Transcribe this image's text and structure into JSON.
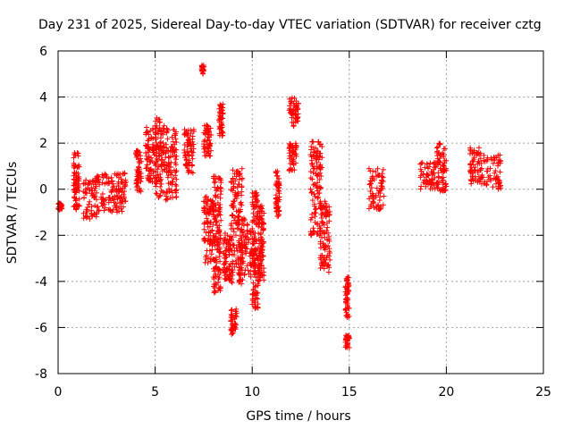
{
  "chart_data": {
    "type": "scatter",
    "title": "Day 231 of 2025, Sidereal Day-to-day VTEC variation (SDTVAR) for receiver cztg",
    "xlabel": "GPS time / hours",
    "ylabel": "SDTVAR / TECUs",
    "xlim": [
      0,
      25
    ],
    "ylim": [
      -8,
      6
    ],
    "xticks": [
      0,
      5,
      10,
      15,
      20,
      25
    ],
    "yticks": [
      -8,
      -6,
      -4,
      -2,
      0,
      2,
      4,
      6
    ],
    "grid": true,
    "marker": "plus",
    "color": "#ff0000",
    "series": [
      {
        "name": "SDTVAR",
        "clusters": [
          {
            "x": [
              0.0,
              0.2
            ],
            "y": [
              -0.9,
              -0.6
            ]
          },
          {
            "x": [
              0.8,
              1.1
            ],
            "y": [
              -0.9,
              1.6
            ]
          },
          {
            "x": [
              1.3,
              2.0
            ],
            "y": [
              -1.3,
              0.5
            ]
          },
          {
            "x": [
              2.0,
              3.0
            ],
            "y": [
              -1.0,
              0.7
            ]
          },
          {
            "x": [
              3.0,
              3.5
            ],
            "y": [
              -1.0,
              0.7
            ]
          },
          {
            "x": [
              4.0,
              4.3
            ],
            "y": [
              -0.1,
              1.7
            ]
          },
          {
            "x": [
              4.5,
              5.0
            ],
            "y": [
              0.3,
              2.7
            ]
          },
          {
            "x": [
              5.0,
              5.5
            ],
            "y": [
              -0.4,
              3.1
            ]
          },
          {
            "x": [
              5.5,
              6.1
            ],
            "y": [
              -0.5,
              2.8
            ]
          },
          {
            "x": [
              6.5,
              7.0
            ],
            "y": [
              0.7,
              2.6
            ]
          },
          {
            "x": [
              7.4,
              7.5
            ],
            "y": [
              5.0,
              5.4
            ]
          },
          {
            "x": [
              7.5,
              7.9
            ],
            "y": [
              1.4,
              2.8
            ]
          },
          {
            "x": [
              7.5,
              8.0
            ],
            "y": [
              -3.2,
              -0.3
            ]
          },
          {
            "x": [
              8.0,
              8.4
            ],
            "y": [
              -4.5,
              0.6
            ]
          },
          {
            "x": [
              8.3,
              8.5
            ],
            "y": [
              2.3,
              3.7
            ]
          },
          {
            "x": [
              8.5,
              8.9
            ],
            "y": [
              -4.0,
              -1.9
            ]
          },
          {
            "x": [
              8.9,
              9.2
            ],
            "y": [
              -6.3,
              -5.2
            ]
          },
          {
            "x": [
              8.9,
              9.5
            ],
            "y": [
              -4.2,
              0.9
            ]
          },
          {
            "x": [
              9.3,
              10.0
            ],
            "y": [
              -4.0,
              -1.2
            ]
          },
          {
            "x": [
              10.0,
              10.3
            ],
            "y": [
              -5.2,
              -0.1
            ]
          },
          {
            "x": [
              10.3,
              10.6
            ],
            "y": [
              -4.0,
              -0.7
            ]
          },
          {
            "x": [
              11.2,
              11.4
            ],
            "y": [
              -1.2,
              0.8
            ]
          },
          {
            "x": [
              11.9,
              12.3
            ],
            "y": [
              0.8,
              2.0
            ]
          },
          {
            "x": [
              11.9,
              12.4
            ],
            "y": [
              2.7,
              4.0
            ]
          },
          {
            "x": [
              13.0,
              13.6
            ],
            "y": [
              -2.0,
              2.1
            ]
          },
          {
            "x": [
              13.5,
              14.0
            ],
            "y": [
              -3.6,
              -0.5
            ]
          },
          {
            "x": [
              14.8,
              15.0
            ],
            "y": [
              -5.6,
              -3.8
            ]
          },
          {
            "x": [
              14.8,
              15.0
            ],
            "y": [
              -6.9,
              -6.3
            ]
          },
          {
            "x": [
              16.0,
              16.8
            ],
            "y": [
              -0.9,
              0.9
            ]
          },
          {
            "x": [
              18.6,
              19.5
            ],
            "y": [
              0.0,
              1.2
            ]
          },
          {
            "x": [
              19.5,
              20.0
            ],
            "y": [
              -0.1,
              2.0
            ]
          },
          {
            "x": [
              21.2,
              21.8
            ],
            "y": [
              0.2,
              1.8
            ]
          },
          {
            "x": [
              21.8,
              22.8
            ],
            "y": [
              0.0,
              1.5
            ]
          }
        ]
      }
    ]
  }
}
